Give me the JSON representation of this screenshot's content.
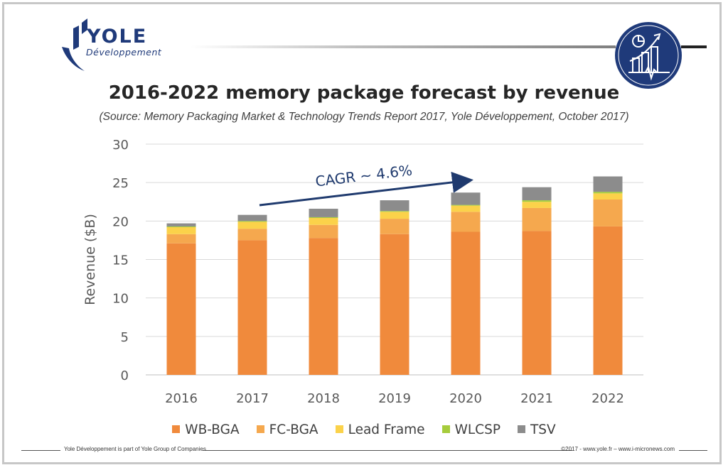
{
  "header": {
    "logo_word": "YOLE",
    "logo_sub": "Développement",
    "badge_icon": "chart-analytics-icon"
  },
  "title": "2016-2022 memory package forecast by revenue",
  "subtitle": "(Source: Memory Packaging Market & Technology Trends Report 2017, Yole Développement, October 2017)",
  "chart_data": {
    "type": "bar",
    "stacked": true,
    "categories": [
      "2016",
      "2017",
      "2018",
      "2019",
      "2020",
      "2021",
      "2022"
    ],
    "series": [
      {
        "name": "WB-BGA",
        "color": "#f08a3c",
        "values": [
          17.1,
          17.5,
          17.8,
          18.3,
          18.6,
          18.7,
          19.3
        ]
      },
      {
        "name": "FC-BGA",
        "color": "#f5a84e",
        "values": [
          1.2,
          1.5,
          1.7,
          2.0,
          2.6,
          3.0,
          3.5
        ]
      },
      {
        "name": "Lead Frame",
        "color": "#fbd24a",
        "values": [
          0.9,
          0.9,
          0.9,
          0.9,
          0.8,
          0.8,
          0.8
        ]
      },
      {
        "name": "WLCSP",
        "color": "#a6cc3c",
        "values": [
          0.1,
          0.1,
          0.1,
          0.1,
          0.1,
          0.2,
          0.2
        ]
      },
      {
        "name": "TSV",
        "color": "#8c8c8c",
        "values": [
          0.4,
          0.8,
          1.1,
          1.4,
          1.6,
          1.7,
          2.0
        ]
      }
    ],
    "xlabel": "",
    "ylabel": "Revenue ($B)",
    "ylim": [
      0,
      30
    ],
    "yticks": [
      0,
      5,
      10,
      15,
      20,
      25,
      30
    ],
    "grid": true,
    "legend_position": "bottom",
    "annotation": {
      "text": "CAGR ~ 4.6%",
      "color": "#1f3a6e",
      "from_category": "2017",
      "to_category": "2020"
    }
  },
  "footer": {
    "left": "Yole Développement is part of Yole Group of Companies",
    "right": "©2017 - www.yole.fr – www.i-micronews.com"
  }
}
